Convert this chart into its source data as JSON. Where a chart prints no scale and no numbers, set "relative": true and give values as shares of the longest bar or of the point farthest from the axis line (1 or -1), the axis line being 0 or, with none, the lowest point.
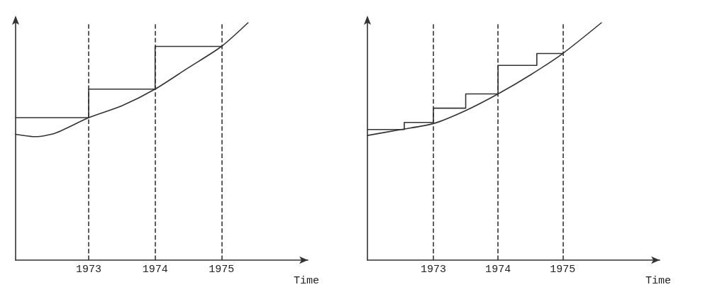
{
  "chart_data": [
    {
      "type": "line",
      "relative": true,
      "xlabel": "Time",
      "xlim": [
        1971.9,
        1976.3
      ],
      "xticks": [
        1973,
        1974,
        1975
      ],
      "tick_labels": "x",
      "grid": false,
      "marker": "none",
      "series": [
        {
          "type": "line",
          "color": "#333333",
          "line_style": "solid",
          "x": [
            1971.9,
            1972.2,
            1972.5,
            1973,
            1973.5,
            1974,
            1974.5,
            1975,
            1975.4
          ],
          "values": [
            0.53,
            0.52,
            0.535,
            0.6,
            0.65,
            0.72,
            0.81,
            0.9,
            1.0
          ]
        },
        {
          "type": "step",
          "color": "#333333",
          "line_style": "solid",
          "x": [
            1971.9,
            1973,
            1974,
            1975
          ],
          "values": [
            0.6,
            0.72,
            0.9,
            0.9
          ]
        }
      ],
      "ref_lines": [
        {
          "axis": "x",
          "value": 1973,
          "line_style": "dashed",
          "color": "#333333"
        },
        {
          "axis": "x",
          "value": 1974,
          "line_style": "dashed",
          "color": "#333333"
        },
        {
          "axis": "x",
          "value": 1975,
          "line_style": "dashed",
          "color": "#333333"
        }
      ]
    },
    {
      "type": "line",
      "relative": true,
      "xlabel": "Time",
      "xlim": [
        1971.98,
        1976.5
      ],
      "xticks": [
        1973,
        1974,
        1975
      ],
      "tick_labels": "x",
      "grid": false,
      "marker": "none",
      "series": [
        {
          "type": "line",
          "color": "#333333",
          "line_style": "solid",
          "x": [
            1971.98,
            1972.5,
            1973,
            1973.5,
            1974,
            1974.5,
            1975,
            1975.6
          ],
          "values": [
            0.525,
            0.55,
            0.575,
            0.63,
            0.7,
            0.78,
            0.87,
            1.0
          ]
        },
        {
          "type": "step",
          "color": "#333333",
          "line_style": "solid",
          "x": [
            1971.98,
            1972.55,
            1973,
            1973.5,
            1974,
            1974.6,
            1975
          ],
          "values": [
            0.55,
            0.58,
            0.64,
            0.7,
            0.82,
            0.87,
            0.87
          ]
        }
      ],
      "ref_lines": [
        {
          "axis": "x",
          "value": 1973,
          "line_style": "dashed",
          "color": "#333333"
        },
        {
          "axis": "x",
          "value": 1974,
          "line_style": "dashed",
          "color": "#333333"
        },
        {
          "axis": "x",
          "value": 1975,
          "line_style": "dashed",
          "color": "#333333"
        }
      ]
    }
  ]
}
